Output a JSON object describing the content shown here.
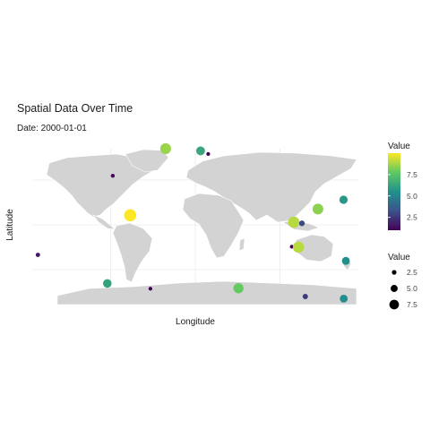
{
  "chart_data": {
    "type": "scatter",
    "title": "Spatial Data Over Time",
    "subtitle": "Date: 2000-01-01",
    "xlabel": "Longitude",
    "ylabel": "Latitude",
    "xlim": [
      -180,
      180
    ],
    "ylim": [
      -90,
      90
    ],
    "grid": true,
    "background": "world-map",
    "color_scale": "viridis",
    "points": [
      {
        "lon": -97.5,
        "lat": 54.8,
        "value": 1.2
      },
      {
        "lon": -35.0,
        "lat": 85.1,
        "value": 8.6
      },
      {
        "lon": 6.3,
        "lat": 82.6,
        "value": 6.4
      },
      {
        "lon": 15.2,
        "lat": 79.1,
        "value": 1.0
      },
      {
        "lon": -77.0,
        "lat": 10.7,
        "value": 10.0
      },
      {
        "lon": -186.0,
        "lat": -33.5,
        "value": 1.6
      },
      {
        "lon": 116.5,
        "lat": 3.0,
        "value": 9.0
      },
      {
        "lon": 126.0,
        "lat": 1.7,
        "value": 3.0
      },
      {
        "lon": 145.0,
        "lat": 17.6,
        "value": 8.4
      },
      {
        "lon": 175.2,
        "lat": 28.0,
        "value": 5.8
      },
      {
        "lon": 114.0,
        "lat": -24.4,
        "value": 1.0
      },
      {
        "lon": 122.0,
        "lat": -24.9,
        "value": 9.0
      },
      {
        "lon": 178.0,
        "lat": -40.2,
        "value": 5.4
      },
      {
        "lon": -104.0,
        "lat": -65.4,
        "value": 6.2
      },
      {
        "lon": -53.0,
        "lat": -71.2,
        "value": 1.0
      },
      {
        "lon": 51.0,
        "lat": -70.8,
        "value": 7.8
      },
      {
        "lon": 130.0,
        "lat": -80.0,
        "value": 2.6
      },
      {
        "lon": 175.5,
        "lat": -82.4,
        "value": 5.4
      }
    ]
  },
  "legend": {
    "color_title": "Value",
    "color_ticks": [
      "7.5",
      "5.0",
      "2.5"
    ],
    "size_title": "Value",
    "size_ticks": [
      "2.5",
      "5.0",
      "7.5"
    ]
  }
}
